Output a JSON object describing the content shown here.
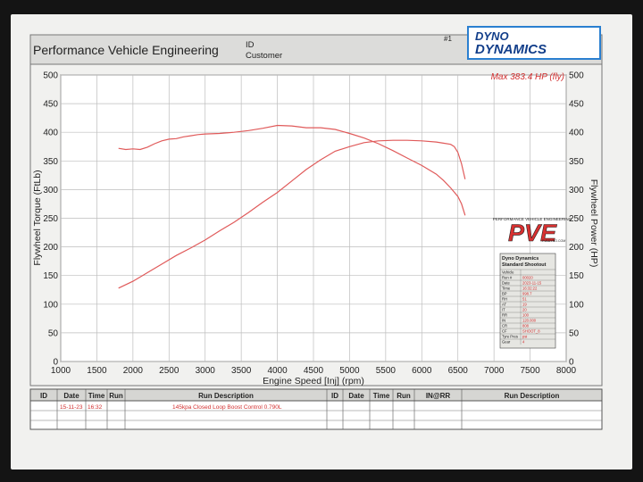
{
  "header": {
    "company": "Performance Vehicle Engineering",
    "id_label": "ID",
    "customer_label": "Customer",
    "sheet_no": "#1",
    "logo_text_1": "DYNO",
    "logo_text_2": "DYNAMICS"
  },
  "chart_data": {
    "type": "line",
    "xlabel": "Engine Speed [Inj] (rpm)",
    "ylabel": "Flywheel Torque (FtLb)",
    "y2label": "Flywheel Power (HP)",
    "max_label": "Max 383.4 HP (fly)",
    "xlim": [
      1000,
      8000
    ],
    "ylim": [
      0,
      500
    ],
    "y2lim": [
      0,
      500
    ],
    "x_ticks": [
      "1000",
      "1500",
      "2000",
      "2500",
      "3000",
      "3500",
      "4000",
      "4500",
      "5000",
      "5500",
      "6000",
      "6500",
      "7000",
      "7500",
      "8000"
    ],
    "y_ticks": [
      "0",
      "50",
      "100",
      "150",
      "200",
      "250",
      "300",
      "350",
      "400",
      "450",
      "500"
    ],
    "y2_ticks": [
      "0",
      "50",
      "100",
      "150",
      "200",
      "250",
      "300",
      "350",
      "400",
      "450",
      "500"
    ],
    "grid": true,
    "series_color": "#e05a5a",
    "series": [
      {
        "x": [
          1800,
          1900,
          2000,
          2100,
          2200,
          2300,
          2400,
          2500,
          2600,
          2700,
          2800,
          2900,
          3000,
          3200,
          3400,
          3600,
          3800,
          4000,
          4200,
          4400,
          4600,
          4800,
          5000,
          5200,
          5400,
          5600,
          5800,
          6000,
          6200,
          6300,
          6400,
          6500,
          6550,
          6600
        ],
        "values": [
          372,
          370,
          371,
          370,
          374,
          380,
          385,
          388,
          389,
          392,
          394,
          396,
          397,
          398,
          400,
          403,
          407,
          412,
          411,
          408,
          408,
          405,
          398,
          390,
          380,
          368,
          355,
          342,
          327,
          316,
          303,
          288,
          275,
          255
        ]
      },
      {
        "x": [
          1800,
          2000,
          2200,
          2400,
          2600,
          2800,
          3000,
          3200,
          3400,
          3600,
          3800,
          4000,
          4200,
          4400,
          4600,
          4800,
          5000,
          5200,
          5400,
          5600,
          5800,
          6000,
          6200,
          6300,
          6400,
          6450,
          6500,
          6550,
          6600
        ],
        "values": [
          128,
          140,
          155,
          170,
          185,
          198,
          212,
          228,
          243,
          260,
          278,
          295,
          315,
          335,
          352,
          367,
          375,
          382,
          385,
          386,
          386,
          385,
          383,
          381,
          379,
          375,
          365,
          345,
          318
        ]
      }
    ]
  },
  "pve_logo": {
    "tagline": "PERFORMANCE VEHICLE ENGINEERING",
    "text": "PVE",
    "subtext": "PVEDYNO.COM"
  },
  "sheet_box": {
    "title1": "Dyno Dynamics",
    "title2": "Standard Shootout",
    "rows": [
      {
        "k": "Vehicle",
        "v": ""
      },
      {
        "k": "Run #",
        "v": "00020"
      },
      {
        "k": "Date",
        "v": "2023-11-15"
      },
      {
        "k": "Time",
        "v": "16:32:22"
      },
      {
        "k": "BP",
        "v": "998.7"
      },
      {
        "k": "RH",
        "v": "51"
      },
      {
        "k": "AT",
        "v": "19"
      },
      {
        "k": "IT",
        "v": "20"
      },
      {
        "k": "RR",
        "v": "100"
      },
      {
        "k": "IN",
        "v": "120.000"
      },
      {
        "k": "CR",
        "v": "808"
      },
      {
        "k": "CF",
        "v": "SHOOT_8"
      },
      {
        "k": "Tyre Pres",
        "v": "psi"
      },
      {
        "k": "Gear",
        "v": "4"
      }
    ]
  },
  "table": {
    "headers": [
      "ID",
      "Date",
      "Time",
      "Run",
      "Run Description",
      "ID",
      "Date",
      "Time",
      "Run",
      "IN@RR",
      "Run Description"
    ],
    "row": {
      "date": "15-11-23",
      "time": "16:32",
      "description": "145kpa Closed Loop Boost Control 0.790L"
    }
  }
}
